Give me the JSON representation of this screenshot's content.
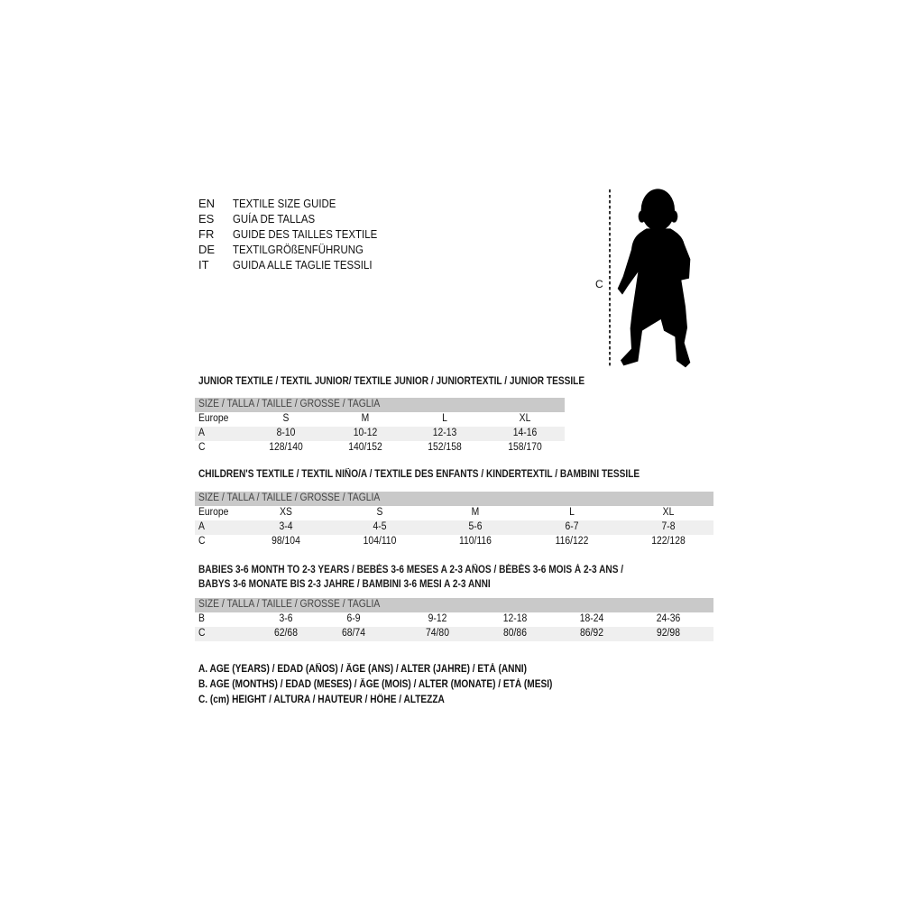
{
  "languages": [
    {
      "code": "EN",
      "text": "TEXTILE SIZE GUIDE"
    },
    {
      "code": "ES",
      "text": "GUÍA DE TALLAS"
    },
    {
      "code": "FR",
      "text": "GUIDE DES TAILLES TEXTILE"
    },
    {
      "code": "DE",
      "text": "TEXTILGRÖßENFÜHRUNG"
    },
    {
      "code": "IT",
      "text": "GUIDA ALLE TAGLIE TESSILI"
    }
  ],
  "figure": {
    "measure_label": "C"
  },
  "tables": [
    {
      "title": "JUNIOR TEXTILE / TEXTIL JUNIOR/ TEXTILE JUNIOR / JUNIORTEXTIL / JUNIOR TESSILE",
      "header": "SIZE / TALLA / TAILLE / GRÖSSE / TAGLIA",
      "rows": [
        {
          "label": "Europe",
          "values": [
            "S",
            "M",
            "L",
            "XL"
          ]
        },
        {
          "label": "A",
          "values": [
            "8-10",
            "10-12",
            "12-13",
            "14-16"
          ]
        },
        {
          "label": "C",
          "values": [
            "128/140",
            "140/152",
            "152/158",
            "158/170"
          ]
        }
      ]
    },
    {
      "title": "CHILDREN'S TEXTILE / TEXTIL NIÑO/A / TEXTILE DES ENFANTS / KINDERTEXTIL / BAMBINI TESSILE",
      "header": "SIZE / TALLA / TAILLE / GRÖSSE / TAGLIA",
      "rows": [
        {
          "label": "Europe",
          "values": [
            "XS",
            "S",
            "M",
            "L",
            "XL"
          ]
        },
        {
          "label": "A",
          "values": [
            "3-4",
            "4-5",
            "5-6",
            "6-7",
            "7-8"
          ]
        },
        {
          "label": "C",
          "values": [
            "98/104",
            "104/110",
            "110/116",
            "116/122",
            "122/128"
          ]
        }
      ]
    },
    {
      "title": "BABIES 3-6 MONTH TO 2-3 YEARS / BEBÉS 3-6 MESES A 2-3 AÑOS / BÉBÉS 3-6 MOIS À 2-3 ANS /",
      "title2": "BABYS 3-6 MONATE BIS 2-3 JAHRE / BAMBINI 3-6 MESI A 2-3 ANNI",
      "header": "SIZE / TALLA / TAILLE / GRÖSSE / TAGLIA",
      "rows": [
        {
          "label": "B",
          "values": [
            "3-6",
            "6-9",
            "9-12",
            "12-18",
            "18-24",
            "24-36"
          ]
        },
        {
          "label": "C",
          "values": [
            "62/68",
            "68/74",
            "74/80",
            "80/86",
            "86/92",
            "92/98"
          ]
        }
      ]
    }
  ],
  "legend": [
    "A. AGE (YEARS) / EDAD (AÑOS) / ÂGE (ANS) / ALTER (JAHRE) / ETÀ (ANNI)",
    "B. AGE (MONTHS) / EDAD (MESES) / ÂGE (MOIS) / ALTER (MONATE) / ETÀ (MESI)",
    "C. (cm) HEIGHT / ALTURA / HAUTEUR / HÖHE / ALTEZZA"
  ]
}
